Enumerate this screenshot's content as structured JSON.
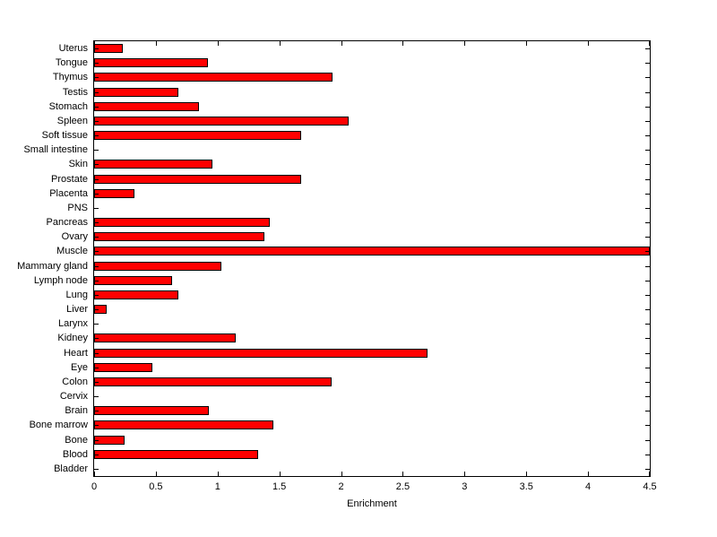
{
  "figure": {
    "background_color": "#ffffff",
    "axis_color": "#000000"
  },
  "chart_data": {
    "type": "bar",
    "orientation": "horizontal",
    "title": "",
    "xlabel": "Enrichment",
    "ylabel": "",
    "xlim": [
      0,
      4.5
    ],
    "xtick_values": [
      0,
      0.5,
      1,
      1.5,
      2,
      2.5,
      3,
      3.5,
      4,
      4.5
    ],
    "xtick_labels": [
      "0",
      "0.5",
      "1",
      "1.5",
      "2",
      "2.5",
      "3",
      "3.5",
      "4",
      "4.5"
    ],
    "grid": false,
    "legend": null,
    "bar_color": "#ff0000",
    "bar_edge_color": "#000000",
    "categories": [
      "Uterus",
      "Tongue",
      "Thymus",
      "Testis",
      "Stomach",
      "Spleen",
      "Soft tissue",
      "Small intestine",
      "Skin",
      "Prostate",
      "Placenta",
      "PNS",
      "Pancreas",
      "Ovary",
      "Muscle",
      "Mammary gland",
      "Lymph node",
      "Lung",
      "Liver",
      "Larynx",
      "Kidney",
      "Heart",
      "Eye",
      "Colon",
      "Cervix",
      "Brain",
      "Bone marrow",
      "Bone",
      "Blood",
      "Bladder"
    ],
    "values": [
      0.23,
      0.92,
      1.93,
      0.68,
      0.85,
      2.06,
      1.68,
      0,
      0.96,
      1.68,
      0.33,
      0,
      1.42,
      1.38,
      4.5,
      1.03,
      0.63,
      0.68,
      0.1,
      0,
      1.15,
      2.7,
      0.47,
      1.92,
      0,
      0.93,
      1.45,
      0.25,
      1.33,
      0
    ]
  }
}
